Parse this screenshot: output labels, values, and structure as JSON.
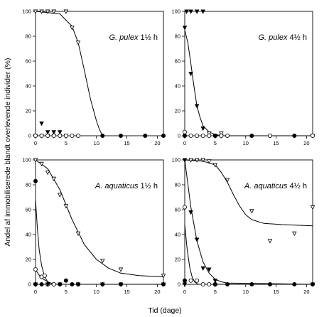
{
  "figure": {
    "ylabel": "Andel af immobiliserede blandt overlevende individer (%)",
    "xlabel": "Tid (dage)"
  },
  "chart_data": [
    {
      "type": "scatter",
      "title_italic": "G. pulex",
      "title_rest": " 1½ h",
      "xlim": [
        0,
        21
      ],
      "ylim": [
        0,
        100
      ],
      "xticks": [
        0,
        5,
        10,
        15,
        20
      ],
      "yticks": [
        0,
        20,
        40,
        60,
        80,
        100
      ],
      "series": [
        {
          "marker": "triangle-down-open",
          "points": [
            [
              0,
              100
            ],
            [
              1,
              100
            ],
            [
              2,
              100
            ],
            [
              3,
              100
            ],
            [
              5,
              100
            ],
            [
              6,
              87
            ],
            [
              7,
              75
            ]
          ],
          "curve": [
            [
              0,
              100
            ],
            [
              4,
              98
            ],
            [
              6,
              88
            ],
            [
              7,
              75
            ],
            [
              8,
              53
            ],
            [
              9,
              30
            ],
            [
              10,
              12
            ],
            [
              10.5,
              5
            ],
            [
              11,
              0
            ]
          ]
        },
        {
          "marker": "triangle-down-filled",
          "points": [
            [
              1,
              10
            ],
            [
              2,
              3
            ],
            [
              3,
              3
            ],
            [
              4,
              3
            ],
            [
              0,
              0
            ],
            [
              1,
              0
            ],
            [
              2,
              0
            ],
            [
              3,
              0
            ],
            [
              4,
              0
            ],
            [
              5,
              0
            ]
          ]
        },
        {
          "marker": "circle-open",
          "points": [
            [
              0,
              0
            ],
            [
              1,
              0
            ],
            [
              2,
              0
            ],
            [
              3,
              0
            ],
            [
              4,
              0
            ],
            [
              5,
              0
            ],
            [
              6,
              0
            ],
            [
              7,
              0
            ]
          ]
        },
        {
          "marker": "circle-filled",
          "points": [
            [
              11,
              0
            ],
            [
              14,
              0
            ],
            [
              18,
              0
            ],
            [
              21,
              0
            ]
          ]
        }
      ]
    },
    {
      "type": "scatter",
      "title_italic": "G. pulex",
      "title_rest": " 4½ h",
      "xlim": [
        0,
        21
      ],
      "ylim": [
        0,
        100
      ],
      "xticks": [
        0,
        5,
        10,
        15,
        20
      ],
      "yticks": [
        0,
        20,
        40,
        60,
        80,
        100
      ],
      "series": [
        {
          "marker": "triangle-down-filled",
          "points": [
            [
              0,
              87
            ],
            [
              0.3,
              100
            ],
            [
              1,
              100
            ],
            [
              2,
              100
            ],
            [
              3,
              100
            ],
            [
              1,
              50
            ],
            [
              2,
              24
            ],
            [
              3,
              6
            ],
            [
              4,
              2
            ],
            [
              5,
              0
            ],
            [
              6,
              0
            ]
          ],
          "curve": [
            [
              0,
              85
            ],
            [
              0.5,
              75
            ],
            [
              1,
              58
            ],
            [
              1.5,
              40
            ],
            [
              2,
              24
            ],
            [
              2.5,
              15
            ],
            [
              3,
              8
            ],
            [
              4,
              3
            ],
            [
              5,
              1
            ],
            [
              6,
              0
            ],
            [
              21,
              0
            ]
          ]
        },
        {
          "marker": "triangle-down-open",
          "points": [
            [
              4,
              2
            ],
            [
              6,
              2
            ],
            [
              21,
              0
            ]
          ]
        },
        {
          "marker": "circle-open",
          "points": [
            [
              0,
              3
            ],
            [
              1,
              0
            ],
            [
              2,
              0
            ],
            [
              3,
              0
            ],
            [
              4,
              0
            ],
            [
              5,
              0
            ],
            [
              6,
              0
            ],
            [
              7,
              0
            ],
            [
              14,
              0
            ],
            [
              21,
              0
            ]
          ]
        },
        {
          "marker": "circle-filled",
          "points": [
            [
              0,
              0
            ],
            [
              5,
              0
            ],
            [
              11,
              0
            ],
            [
              18,
              0
            ]
          ]
        }
      ]
    },
    {
      "type": "scatter",
      "title_italic": "A. aquaticus",
      "title_rest": " 1½ h",
      "xlim": [
        0,
        21
      ],
      "ylim": [
        0,
        100
      ],
      "xticks": [
        0,
        5,
        10,
        15,
        20
      ],
      "yticks": [
        0,
        20,
        40,
        60,
        80,
        100
      ],
      "series": [
        {
          "marker": "triangle-down-open",
          "points": [
            [
              0,
              100
            ],
            [
              1,
              97
            ],
            [
              2,
              90
            ],
            [
              3,
              85
            ],
            [
              4,
              72
            ],
            [
              5,
              63
            ],
            [
              7,
              41
            ],
            [
              11,
              19
            ],
            [
              14,
              12
            ],
            [
              21,
              7
            ]
          ],
          "curve": [
            [
              0,
              100
            ],
            [
              2,
              93
            ],
            [
              4,
              76
            ],
            [
              6,
              52
            ],
            [
              8,
              32
            ],
            [
              10,
              20
            ],
            [
              12,
              13
            ],
            [
              14,
              9
            ],
            [
              17,
              7
            ],
            [
              21,
              6
            ]
          ]
        },
        {
          "marker": "circle-filled",
          "points": [
            [
              0,
              83
            ],
            [
              1,
              6
            ],
            [
              5,
              3
            ],
            [
              0,
              0
            ],
            [
              1,
              0
            ],
            [
              2,
              0
            ],
            [
              3,
              0
            ],
            [
              4,
              0
            ],
            [
              6,
              0
            ],
            [
              7,
              0
            ],
            [
              11,
              0
            ],
            [
              14,
              0
            ],
            [
              21,
              0
            ]
          ],
          "curve": [
            [
              0,
              68
            ],
            [
              0.3,
              45
            ],
            [
              0.6,
              28
            ],
            [
              1,
              15
            ],
            [
              1.5,
              6
            ],
            [
              2,
              2
            ],
            [
              3,
              0
            ],
            [
              21,
              0
            ]
          ]
        },
        {
          "marker": "circle-open",
          "points": [
            [
              0,
              12
            ],
            [
              1,
              6
            ],
            [
              1.5,
              7
            ],
            [
              2,
              0
            ],
            [
              3,
              0
            ]
          ],
          "curve": [
            [
              0,
              12
            ],
            [
              0.5,
              8
            ],
            [
              1,
              5
            ],
            [
              2,
              2
            ],
            [
              3,
              0
            ],
            [
              21,
              0
            ]
          ]
        },
        {
          "marker": "triangle-down-filled",
          "points": [
            [
              0,
              0
            ],
            [
              2,
              0
            ],
            [
              4,
              0
            ],
            [
              7,
              0
            ],
            [
              11,
              0
            ],
            [
              14,
              0
            ],
            [
              21,
              0
            ]
          ]
        }
      ]
    },
    {
      "type": "scatter",
      "title_italic": "A. aquaticus",
      "title_rest": " 4½ h",
      "xlim": [
        0,
        21
      ],
      "ylim": [
        0,
        100
      ],
      "xticks": [
        0,
        5,
        10,
        15,
        20
      ],
      "yticks": [
        0,
        20,
        40,
        60,
        80,
        100
      ],
      "series": [
        {
          "marker": "triangle-down-open",
          "points": [
            [
              0,
              100
            ],
            [
              1,
              100
            ],
            [
              2,
              100
            ],
            [
              3,
              100
            ],
            [
              4,
              99
            ],
            [
              5,
              96
            ],
            [
              7,
              84
            ],
            [
              11,
              59
            ],
            [
              14,
              35
            ],
            [
              18,
              41
            ],
            [
              21,
              62
            ]
          ],
          "curve": [
            [
              0,
              100
            ],
            [
              3,
              99
            ],
            [
              5,
              96
            ],
            [
              6,
              90
            ],
            [
              7,
              82
            ],
            [
              8,
              72
            ],
            [
              9,
              63
            ],
            [
              10,
              56
            ],
            [
              11,
              52
            ],
            [
              13,
              49
            ],
            [
              16,
              48
            ],
            [
              21,
              47
            ]
          ]
        },
        {
          "marker": "triangle-down-filled",
          "points": [
            [
              0,
              100
            ],
            [
              1,
              58
            ],
            [
              2,
              36
            ],
            [
              3,
              13
            ],
            [
              4,
              12
            ],
            [
              5,
              3
            ],
            [
              0,
              0
            ],
            [
              21,
              0
            ]
          ],
          "curve": [
            [
              0,
              100
            ],
            [
              1,
              62
            ],
            [
              2,
              35
            ],
            [
              3,
              18
            ],
            [
              4,
              9
            ],
            [
              5,
              4
            ],
            [
              6,
              2
            ],
            [
              7,
              1
            ],
            [
              21,
              0
            ]
          ]
        },
        {
          "marker": "circle-open",
          "points": [
            [
              0,
              62
            ],
            [
              1,
              3
            ],
            [
              2,
              3
            ],
            [
              3,
              0
            ],
            [
              4,
              0
            ],
            [
              5,
              0
            ]
          ],
          "curve": [
            [
              0,
              48
            ],
            [
              0.4,
              28
            ],
            [
              0.8,
              14
            ],
            [
              1.2,
              6
            ],
            [
              1.6,
              2
            ],
            [
              2.2,
              0
            ],
            [
              21,
              0
            ]
          ]
        },
        {
          "marker": "circle-filled",
          "points": [
            [
              0,
              3
            ],
            [
              5,
              0
            ],
            [
              7,
              0
            ],
            [
              11,
              0
            ],
            [
              14,
              0
            ],
            [
              18,
              0
            ],
            [
              21,
              0
            ]
          ]
        }
      ]
    }
  ]
}
